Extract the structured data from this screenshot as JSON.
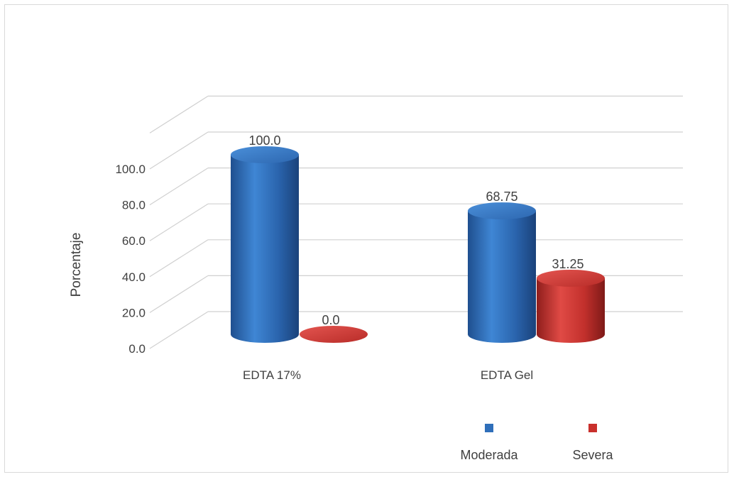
{
  "chart_data": {
    "type": "bar",
    "style": "3d-cylinder",
    "title": "",
    "xlabel": "",
    "ylabel": "Porcentaje",
    "ylim": [
      0,
      100
    ],
    "yticks": [
      "0.0",
      "20.0",
      "40.0",
      "60.0",
      "80.0",
      "100.0"
    ],
    "categories": [
      "EDTA 17%",
      "EDTA Gel"
    ],
    "series": [
      {
        "name": "Moderada",
        "color": "#2f6fba",
        "values": [
          100.0,
          68.75
        ],
        "labels": [
          "100.0",
          "68.75"
        ]
      },
      {
        "name": "Severa",
        "color": "#c9302c",
        "values": [
          0.0,
          31.25
        ],
        "labels": [
          "0.0",
          "31.25"
        ]
      }
    ],
    "grid": true,
    "legend_position": "bottom-right"
  }
}
